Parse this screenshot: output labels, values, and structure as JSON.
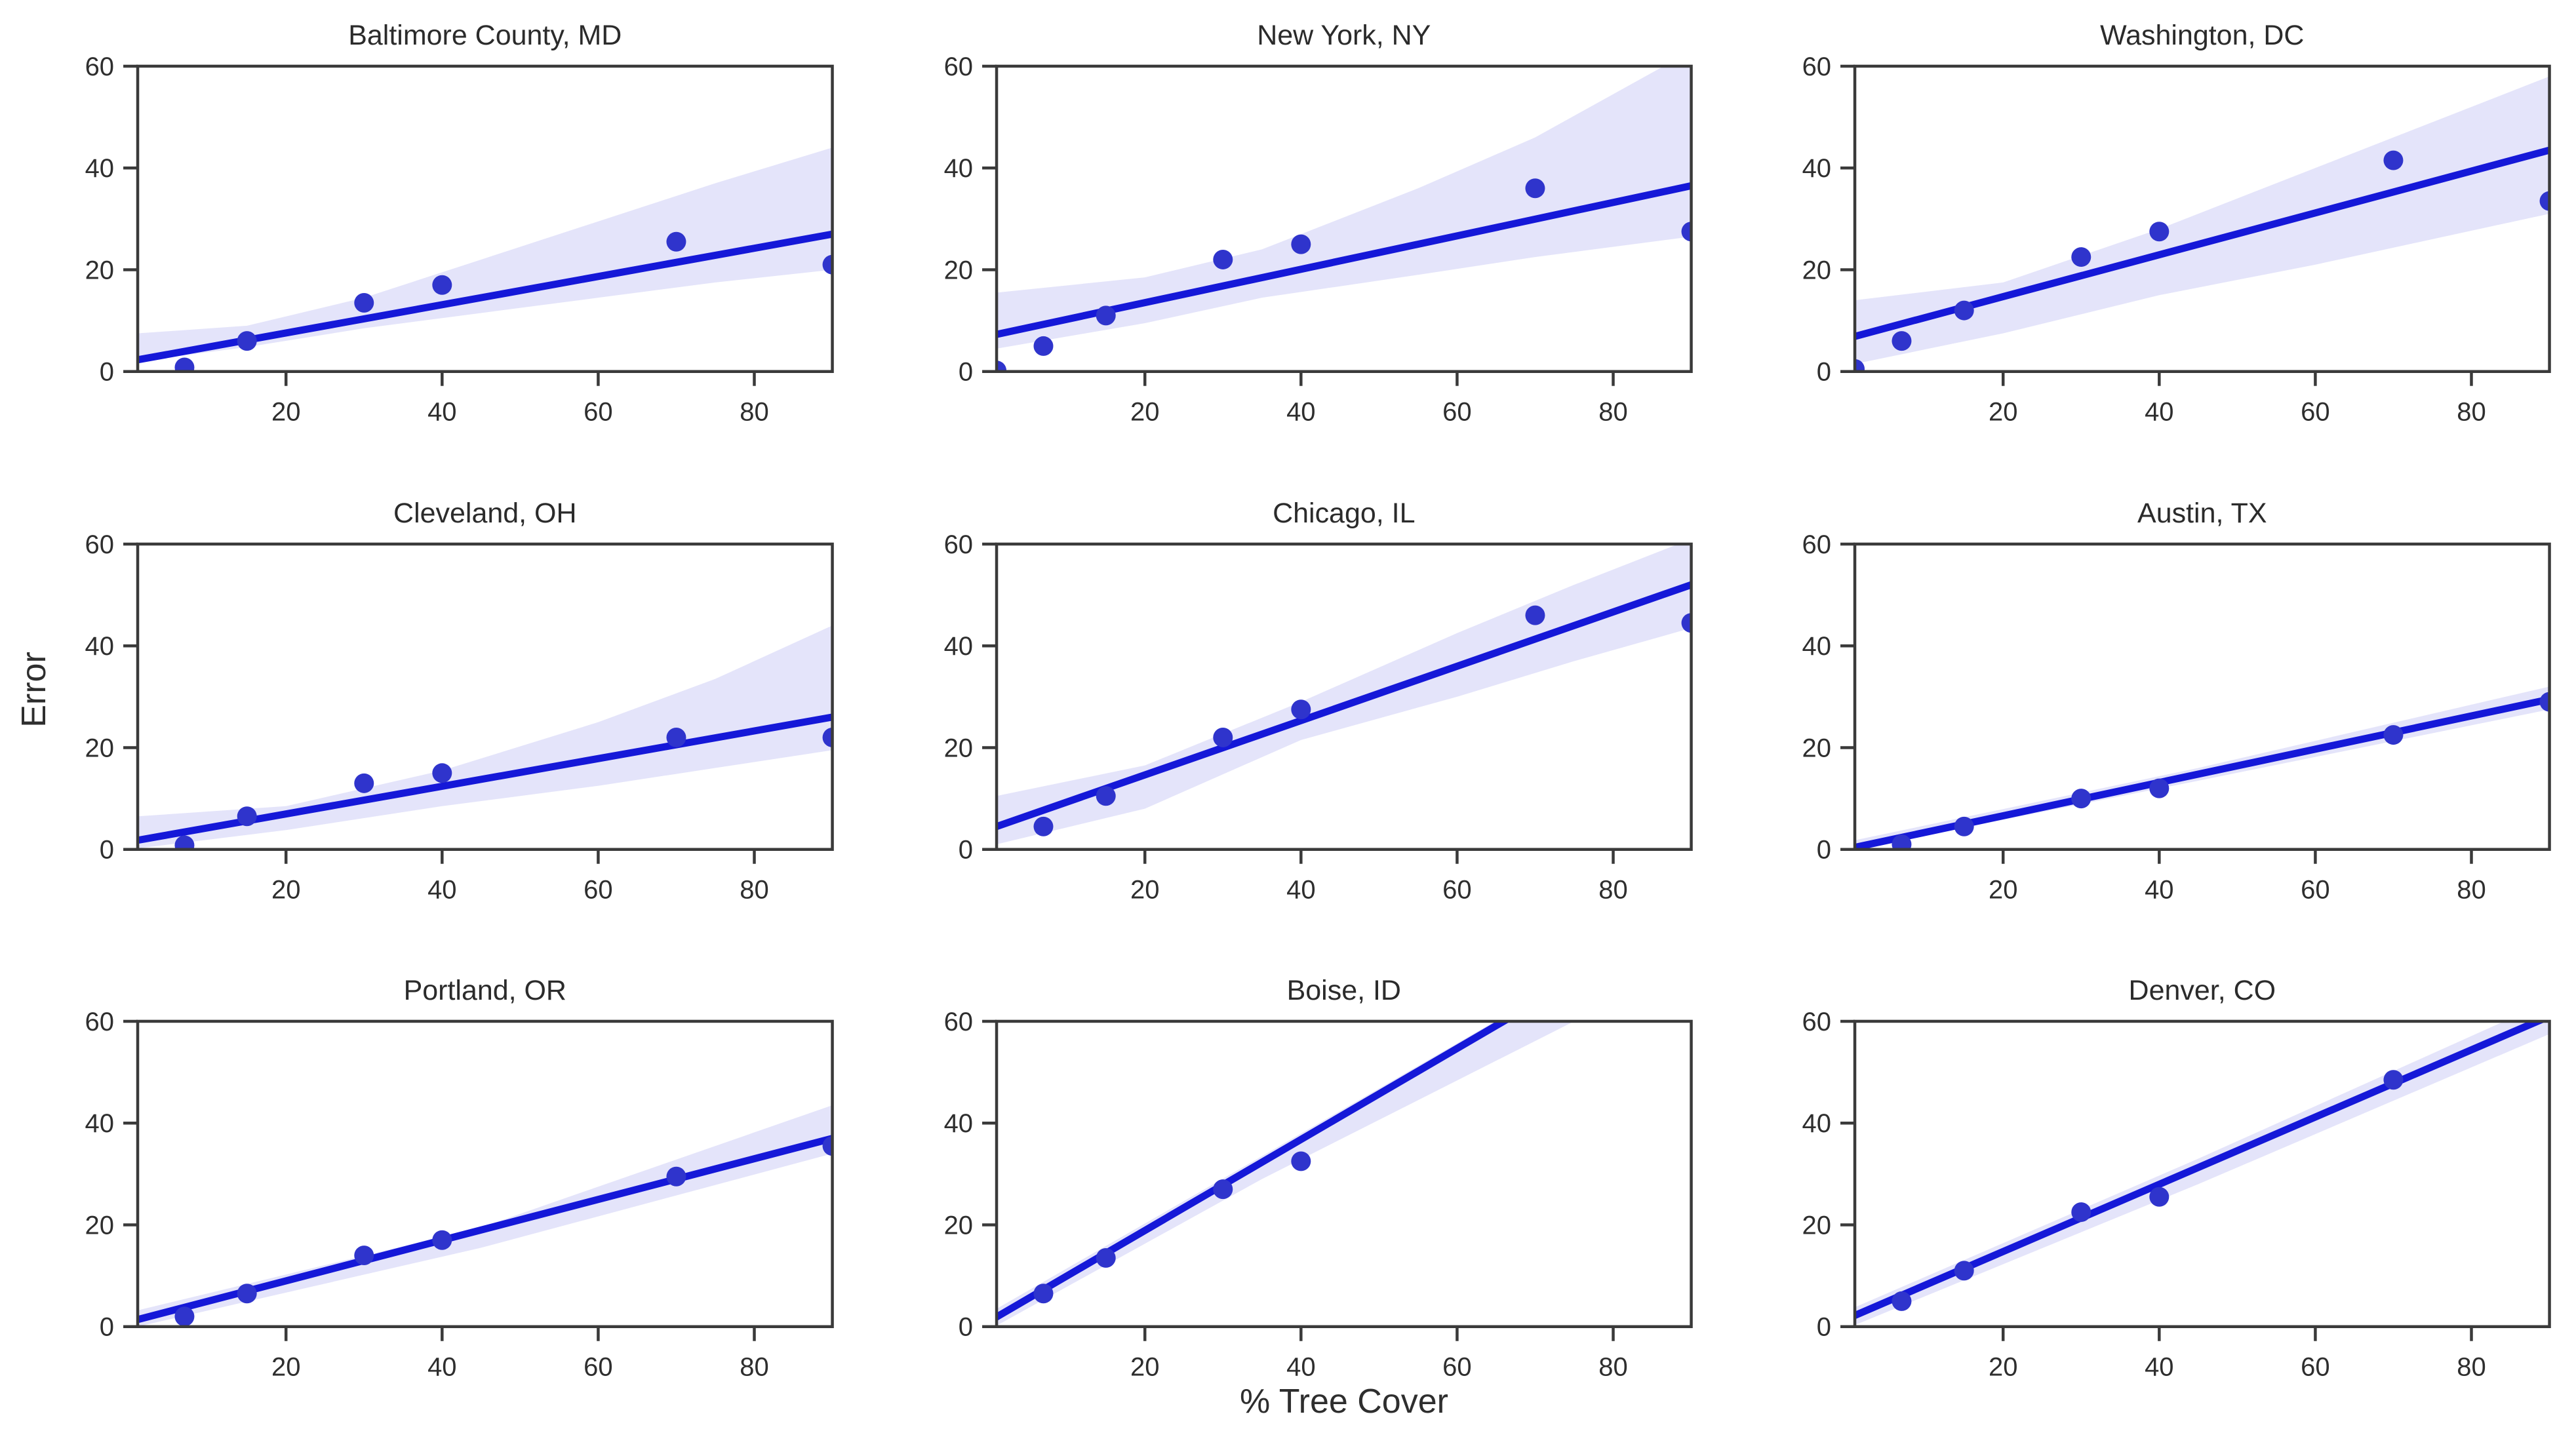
{
  "figure": {
    "ylabel": "Error",
    "xlabel": "% Tree Cover",
    "colors": {
      "regression_line": "#1518d8",
      "scatter_dot": "#2f34cc",
      "confidence_band": "rgba(105,105,225,0.18)",
      "spine": "#3a3a3a",
      "tick": "#3a3a3a",
      "text": "#2e2e2e",
      "background": "#ffffff"
    }
  },
  "chart_data": [
    {
      "type": "scatter",
      "title": "Baltimore County, MD",
      "xlabel": "",
      "ylabel": "",
      "xlim": [
        1,
        90
      ],
      "ylim": [
        0,
        60
      ],
      "xticks": [
        20,
        40,
        60,
        80
      ],
      "yticks": [
        0,
        20,
        40,
        60
      ],
      "x": [
        7,
        15,
        30,
        40,
        70,
        90
      ],
      "y": [
        0.8,
        6,
        13.5,
        17,
        25.5,
        21
      ],
      "regression": {
        "x": [
          1,
          90
        ],
        "y": [
          2.3,
          27
        ]
      },
      "band": {
        "x": [
          1,
          15,
          30,
          45,
          60,
          75,
          90
        ],
        "upper": [
          7.5,
          9,
          14.5,
          22,
          29.5,
          37,
          44
        ],
        "lower": [
          2,
          4.8,
          8.5,
          11.5,
          14.5,
          17.5,
          20
        ]
      }
    },
    {
      "type": "scatter",
      "title": "New York, NY",
      "xlabel": "",
      "ylabel": "",
      "xlim": [
        1,
        90
      ],
      "ylim": [
        0,
        60
      ],
      "xticks": [
        20,
        40,
        60,
        80
      ],
      "yticks": [
        0,
        20,
        40,
        60
      ],
      "x": [
        1,
        7,
        15,
        30,
        40,
        70,
        90
      ],
      "y": [
        0.2,
        5,
        11,
        22,
        25,
        36,
        27.5
      ],
      "regression": {
        "x": [
          1,
          90
        ],
        "y": [
          7.3,
          36.5
        ]
      },
      "band": {
        "x": [
          1,
          20,
          35,
          55,
          70,
          90
        ],
        "upper": [
          15.5,
          18.5,
          24,
          36,
          46,
          63
        ],
        "lower": [
          4.5,
          9.5,
          14.5,
          19,
          22.5,
          26.5
        ]
      }
    },
    {
      "type": "scatter",
      "title": "Washington, DC",
      "xlabel": "",
      "ylabel": "",
      "xlim": [
        1,
        90
      ],
      "ylim": [
        0,
        60
      ],
      "xticks": [
        20,
        40,
        60,
        80
      ],
      "yticks": [
        0,
        20,
        40,
        60
      ],
      "x": [
        1,
        7,
        15,
        30,
        40,
        70,
        90
      ],
      "y": [
        0.5,
        6,
        12,
        22.5,
        27.5,
        41.5,
        33.5
      ],
      "regression": {
        "x": [
          1,
          90
        ],
        "y": [
          6.9,
          43.5
        ]
      },
      "band": {
        "x": [
          1,
          20,
          40,
          60,
          75,
          90
        ],
        "upper": [
          14,
          17.5,
          28,
          40,
          49,
          58
        ],
        "lower": [
          1.5,
          7.5,
          15,
          21,
          26,
          31
        ]
      }
    },
    {
      "type": "scatter",
      "title": "Cleveland, OH",
      "xlabel": "",
      "ylabel": "",
      "xlim": [
        1,
        90
      ],
      "ylim": [
        0,
        60
      ],
      "xticks": [
        20,
        40,
        60,
        80
      ],
      "yticks": [
        0,
        20,
        40,
        60
      ],
      "x": [
        7,
        15,
        30,
        40,
        70,
        90
      ],
      "y": [
        0.8,
        6.5,
        13,
        15,
        22,
        22
      ],
      "regression": {
        "x": [
          1,
          90
        ],
        "y": [
          1.8,
          26
        ]
      },
      "band": {
        "x": [
          1,
          20,
          40,
          60,
          75,
          90
        ],
        "upper": [
          6.5,
          8.5,
          15.5,
          25,
          33.5,
          44
        ],
        "lower": [
          0.2,
          3.8,
          8.5,
          12.5,
          16,
          19.5
        ]
      }
    },
    {
      "type": "scatter",
      "title": "Chicago, IL",
      "xlabel": "",
      "ylabel": "",
      "xlim": [
        1,
        90
      ],
      "ylim": [
        0,
        60
      ],
      "xticks": [
        20,
        40,
        60,
        80
      ],
      "yticks": [
        0,
        20,
        40,
        60
      ],
      "x": [
        7,
        15,
        30,
        40,
        70,
        90
      ],
      "y": [
        4.5,
        10.5,
        22,
        27.5,
        46,
        44.5
      ],
      "regression": {
        "x": [
          1,
          90
        ],
        "y": [
          4.5,
          52
        ]
      },
      "band": {
        "x": [
          1,
          20,
          40,
          60,
          75,
          90
        ],
        "upper": [
          10.5,
          16.5,
          29,
          42.5,
          52,
          61
        ],
        "lower": [
          1,
          8,
          21.5,
          30,
          37,
          43.5
        ]
      }
    },
    {
      "type": "scatter",
      "title": "Austin, TX",
      "xlabel": "",
      "ylabel": "",
      "xlim": [
        1,
        90
      ],
      "ylim": [
        0,
        60
      ],
      "xticks": [
        20,
        40,
        60,
        80
      ],
      "yticks": [
        0,
        20,
        40,
        60
      ],
      "x": [
        7,
        15,
        30,
        40,
        70,
        90
      ],
      "y": [
        1,
        4.5,
        10,
        12,
        22.5,
        29
      ],
      "regression": {
        "x": [
          1,
          90
        ],
        "y": [
          0.4,
          29.5
        ]
      },
      "band": {
        "x": [
          1,
          45,
          90
        ],
        "upper": [
          1.8,
          16,
          32
        ],
        "lower": [
          0,
          13.5,
          27.5
        ]
      }
    },
    {
      "type": "scatter",
      "title": "Portland, OR",
      "xlabel": "",
      "ylabel": "",
      "xlim": [
        1,
        90
      ],
      "ylim": [
        0,
        60
      ],
      "xticks": [
        20,
        40,
        60,
        80
      ],
      "yticks": [
        0,
        20,
        40,
        60
      ],
      "x": [
        7,
        15,
        30,
        40,
        70,
        90
      ],
      "y": [
        2,
        6.5,
        14,
        17,
        29.5,
        35.5
      ],
      "regression": {
        "x": [
          1,
          90
        ],
        "y": [
          1.4,
          37
        ]
      },
      "band": {
        "x": [
          1,
          45,
          90
        ],
        "upper": [
          3.2,
          19.5,
          43.5
        ],
        "lower": [
          0,
          15.5,
          34
        ]
      }
    },
    {
      "type": "scatter",
      "title": "Boise, ID",
      "xlabel": "% Tree Cover",
      "ylabel": "",
      "xlim": [
        1,
        90
      ],
      "ylim": [
        0,
        60
      ],
      "xticks": [
        20,
        40,
        60,
        80
      ],
      "yticks": [
        0,
        20,
        40,
        60
      ],
      "x": [
        7,
        15,
        30,
        40
      ],
      "y": [
        6.5,
        13.5,
        27,
        32.5
      ],
      "regression": {
        "x": [
          1,
          90
        ],
        "y": [
          1.9,
          81.5
        ]
      },
      "band": {
        "x": [
          1,
          35,
          75
        ],
        "upper": [
          3.5,
          33.5,
          69
        ],
        "lower": [
          0.2,
          29,
          60
        ]
      }
    },
    {
      "type": "scatter",
      "title": "Denver, CO",
      "xlabel": "",
      "ylabel": "",
      "xlim": [
        1,
        90
      ],
      "ylim": [
        0,
        60
      ],
      "xticks": [
        20,
        40,
        60,
        80
      ],
      "yticks": [
        0,
        20,
        40,
        60
      ],
      "x": [
        7,
        15,
        30,
        40,
        70
      ],
      "y": [
        5,
        11,
        22.5,
        25.5,
        48.5
      ],
      "regression": {
        "x": [
          1,
          90
        ],
        "y": [
          2.2,
          61
        ]
      },
      "band": {
        "x": [
          1,
          45,
          90
        ],
        "upper": [
          3.8,
          33,
          64
        ],
        "lower": [
          0.3,
          28,
          57.5
        ]
      }
    }
  ]
}
